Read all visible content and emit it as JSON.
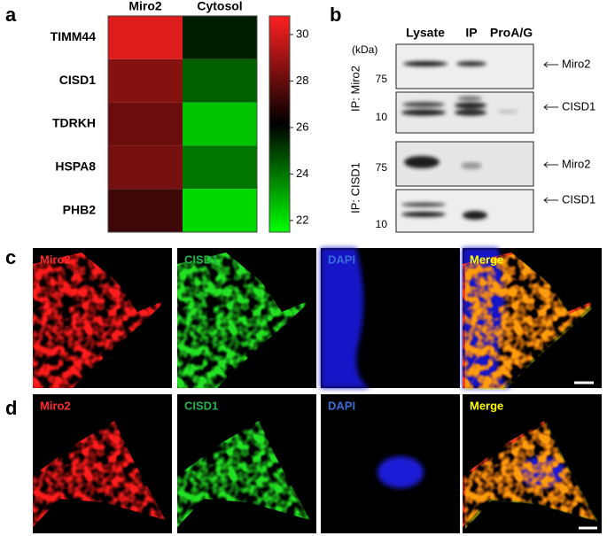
{
  "panels": [
    "a",
    "b",
    "c",
    "d"
  ],
  "chart_data": {
    "type": "heatmap",
    "columns": [
      "Miro2",
      "Cytosol"
    ],
    "categories": [
      "TIMM44",
      "CISD1",
      "TDRKH",
      "HSPA8",
      "PHB2"
    ],
    "values": [
      [
        30.2,
        25.6
      ],
      [
        28.6,
        24.4
      ],
      [
        28.1,
        22.6
      ],
      [
        28.3,
        24.0
      ],
      [
        27.3,
        22.2
      ]
    ],
    "colormap": [
      "#00ff00",
      "#000000",
      "#ff2020"
    ],
    "zlim": [
      21.5,
      30.8
    ],
    "zticks": [
      22,
      24,
      26,
      28,
      30
    ]
  },
  "blot": {
    "headers": [
      "Lysate",
      "IP",
      "ProA/G"
    ],
    "unit": "(kDa)",
    "markers": [
      "75",
      "10",
      "75",
      "10"
    ],
    "bands": [
      "Miro2",
      "CISD1",
      "Miro2",
      "CISD1"
    ],
    "groups": [
      "IP: Miro2",
      "IP: CISD1"
    ]
  },
  "microscopy": {
    "rows": [
      {
        "labels": [
          "Miro2",
          "CISD1",
          "DAPI",
          "Merge"
        ]
      },
      {
        "labels": [
          "Miro2",
          "CISD1",
          "DAPI",
          "Merge"
        ]
      }
    ]
  }
}
